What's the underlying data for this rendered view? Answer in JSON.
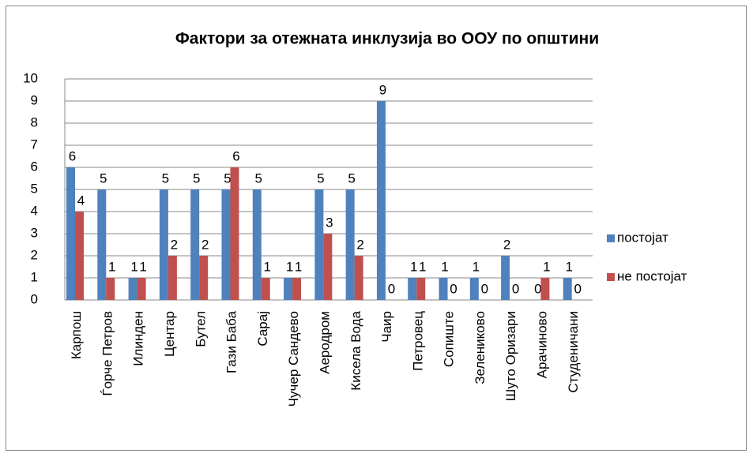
{
  "chart_data": {
    "type": "bar",
    "title": "Фактори за отежната инклузија во ООУ по општини",
    "categories": [
      "Карпош",
      "Ѓорче Петров",
      "Илинден",
      "Центар",
      "Бутел",
      "Гази Баба",
      "Сарај",
      "Чучер Сандево",
      "Аеродром",
      "Кисела Вода",
      "Чаир",
      "Петровец",
      "Сопиште",
      "Зелениково",
      "Шуто Оризари",
      "Арачиново",
      "Студеничани"
    ],
    "series": [
      {
        "name": "постојат",
        "color": "#4f81bd",
        "values": [
          6,
          5,
          1,
          5,
          5,
          5,
          5,
          1,
          5,
          5,
          9,
          1,
          1,
          1,
          2,
          0,
          1
        ]
      },
      {
        "name": "не постојат",
        "color": "#c0504d",
        "values": [
          4,
          1,
          1,
          2,
          2,
          6,
          1,
          1,
          3,
          2,
          0,
          1,
          0,
          0,
          0,
          1,
          0
        ]
      }
    ],
    "ylim": [
      0,
      10
    ],
    "yticks": [
      0,
      1,
      2,
      3,
      4,
      5,
      6,
      7,
      8,
      9,
      10
    ],
    "grid": true,
    "legend": "right"
  }
}
